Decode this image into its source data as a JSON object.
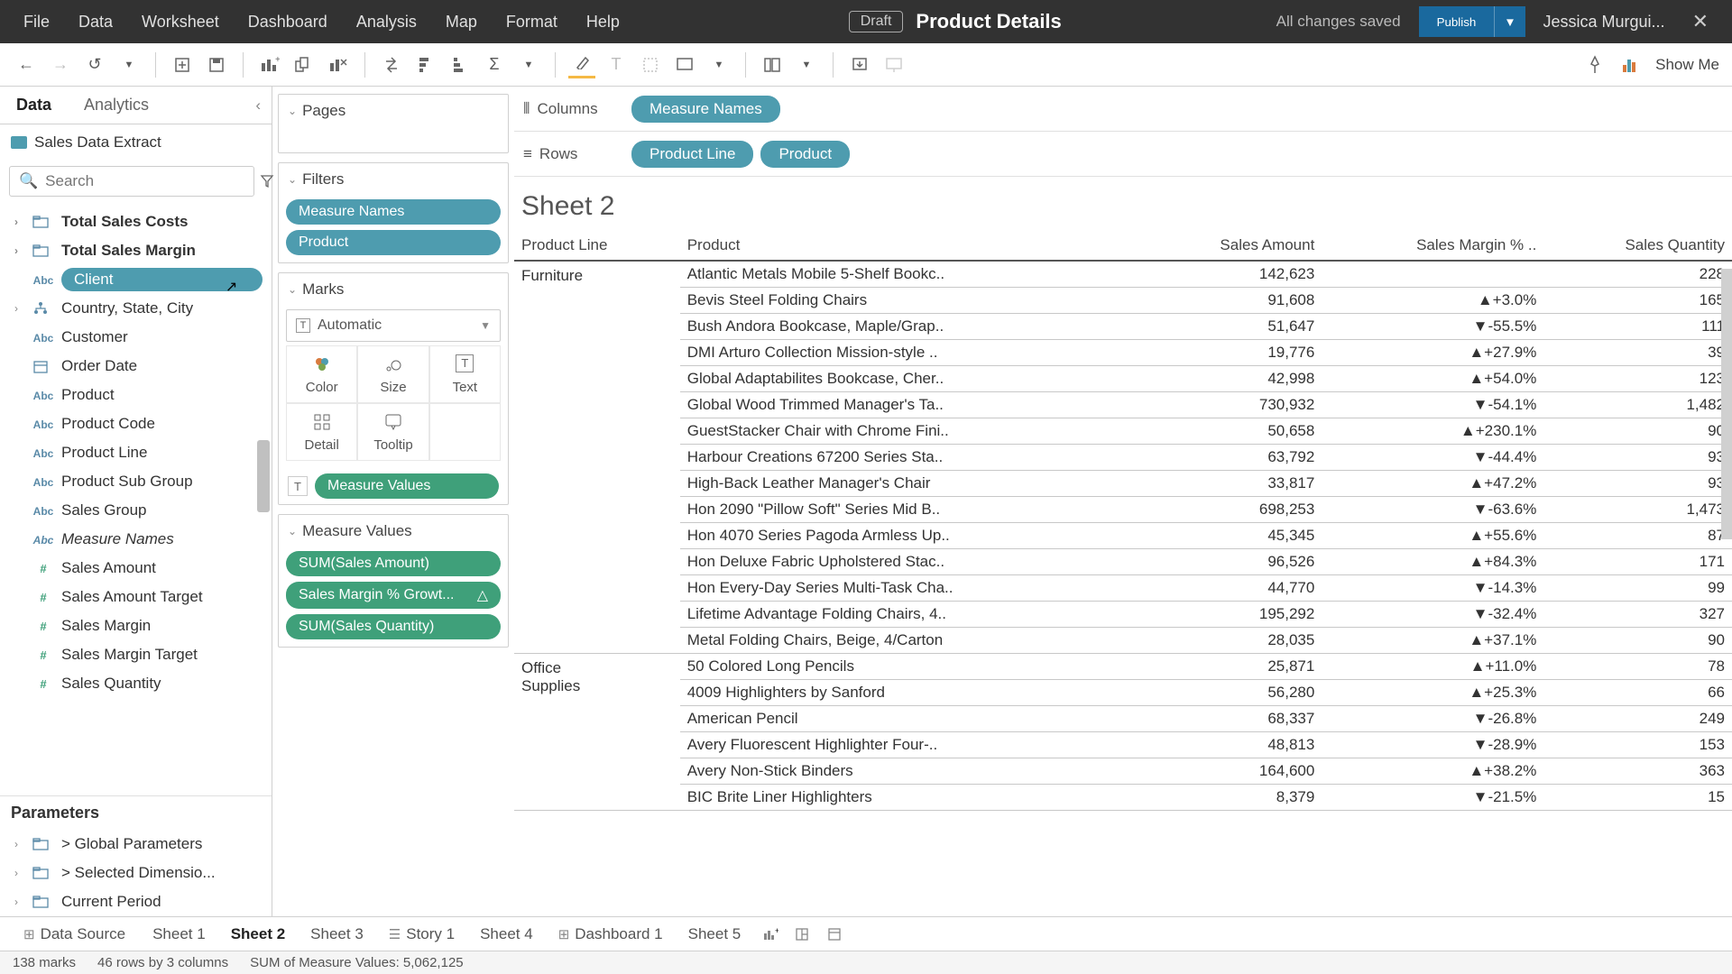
{
  "top": {
    "menus": [
      "File",
      "Data",
      "Worksheet",
      "Dashboard",
      "Analysis",
      "Map",
      "Format",
      "Help"
    ],
    "draft": "Draft",
    "title": "Product Details",
    "saved": "All changes saved",
    "publish": "Publish",
    "user": "Jessica Murgui..."
  },
  "sidebar": {
    "tabs": [
      "Data",
      "Analytics"
    ],
    "datasource": "Sales Data Extract",
    "search_placeholder": "Search",
    "fields": [
      {
        "exp": ">",
        "type": "folder",
        "label": "Total Sales Costs",
        "bold": true
      },
      {
        "exp": ">",
        "type": "folder",
        "label": "Total Sales Margin",
        "bold": true
      },
      {
        "exp": "",
        "type": "Abc",
        "label": "Client",
        "pill": true
      },
      {
        "exp": ">",
        "type": "hier",
        "label": "Country, State, City"
      },
      {
        "exp": "",
        "type": "Abc",
        "label": "Customer"
      },
      {
        "exp": "",
        "type": "date",
        "label": "Order Date"
      },
      {
        "exp": "",
        "type": "Abc",
        "label": "Product"
      },
      {
        "exp": "",
        "type": "Abc",
        "label": "Product Code"
      },
      {
        "exp": "",
        "type": "Abc",
        "label": "Product Line"
      },
      {
        "exp": "",
        "type": "Abc",
        "label": "Product Sub Group"
      },
      {
        "exp": "",
        "type": "Abc",
        "label": "Sales Group"
      },
      {
        "exp": "",
        "type": "Abc",
        "label": "Measure Names",
        "italic": true
      },
      {
        "exp": "",
        "type": "#",
        "label": "Sales Amount",
        "measure": true
      },
      {
        "exp": "",
        "type": "#",
        "label": "Sales Amount Target",
        "measure": true
      },
      {
        "exp": "",
        "type": "#",
        "label": "Sales Margin",
        "measure": true
      },
      {
        "exp": "",
        "type": "#",
        "label": "Sales Margin Target",
        "measure": true
      },
      {
        "exp": "",
        "type": "#",
        "label": "Sales Quantity",
        "measure": true,
        "cut": true
      }
    ],
    "params_header": "Parameters",
    "params": [
      {
        "exp": ">",
        "type": "folder",
        "label": "> Global Parameters"
      },
      {
        "exp": ">",
        "type": "folder",
        "label": "> Selected Dimensio..."
      },
      {
        "exp": ">",
        "type": "folder",
        "label": "Current Period"
      }
    ]
  },
  "cards": {
    "pages": "Pages",
    "filters": {
      "title": "Filters",
      "pills": [
        "Measure Names",
        "Product"
      ]
    },
    "marks": {
      "title": "Marks",
      "type": "Automatic",
      "cells": [
        "Color",
        "Size",
        "Text",
        "Detail",
        "Tooltip"
      ],
      "label_pill": "Measure Values"
    },
    "measure_values": {
      "title": "Measure Values",
      "pills": [
        "SUM(Sales Amount)",
        "Sales Margin % Growt...",
        "SUM(Sales Quantity)"
      ]
    }
  },
  "shelves": {
    "columns_label": "Columns",
    "columns": [
      "Measure Names"
    ],
    "rows_label": "Rows",
    "rows": [
      "Product Line",
      "Product"
    ]
  },
  "sheet": {
    "title": "Sheet 2",
    "columns": [
      "Product Line",
      "Product",
      "Sales Amount",
      "Sales Margin % ..",
      "Sales Quantity"
    ],
    "groups": [
      {
        "line": "Furniture",
        "rows": [
          [
            "Atlantic Metals Mobile 5-Shelf Bookc..",
            "142,623",
            "",
            "228"
          ],
          [
            "Bevis Steel Folding Chairs",
            "91,608",
            "▲+3.0%",
            "165"
          ],
          [
            "Bush Andora Bookcase, Maple/Grap..",
            "51,647",
            "▼-55.5%",
            "111"
          ],
          [
            "DMI Arturo Collection Mission-style ..",
            "19,776",
            "▲+27.9%",
            "39"
          ],
          [
            "Global Adaptabilites Bookcase, Cher..",
            "42,998",
            "▲+54.0%",
            "123"
          ],
          [
            "Global Wood Trimmed Manager's Ta..",
            "730,932",
            "▼-54.1%",
            "1,482"
          ],
          [
            "GuestStacker Chair with Chrome Fini..",
            "50,658",
            "▲+230.1%",
            "90"
          ],
          [
            "Harbour Creations 67200 Series Sta..",
            "63,792",
            "▼-44.4%",
            "93"
          ],
          [
            "High-Back Leather Manager's Chair",
            "33,817",
            "▲+47.2%",
            "93"
          ],
          [
            "Hon 2090 \"Pillow Soft\" Series Mid B..",
            "698,253",
            "▼-63.6%",
            "1,473"
          ],
          [
            "Hon 4070 Series Pagoda Armless Up..",
            "45,345",
            "▲+55.6%",
            "87"
          ],
          [
            "Hon Deluxe Fabric Upholstered Stac..",
            "96,526",
            "▲+84.3%",
            "171"
          ],
          [
            "Hon Every-Day Series Multi-Task Cha..",
            "44,770",
            "▼-14.3%",
            "99"
          ],
          [
            "Lifetime Advantage Folding Chairs, 4..",
            "195,292",
            "▼-32.4%",
            "327"
          ],
          [
            "Metal Folding Chairs, Beige, 4/Carton",
            "28,035",
            "▲+37.1%",
            "90"
          ]
        ]
      },
      {
        "line": "Office\nSupplies",
        "rows": [
          [
            "50 Colored Long Pencils",
            "25,871",
            "▲+11.0%",
            "78"
          ],
          [
            "4009 Highlighters by Sanford",
            "56,280",
            "▲+25.3%",
            "66"
          ],
          [
            "American Pencil",
            "68,337",
            "▼-26.8%",
            "249"
          ],
          [
            "Avery Fluorescent Highlighter Four-..",
            "48,813",
            "▼-28.9%",
            "153"
          ],
          [
            "Avery Non-Stick Binders",
            "164,600",
            "▲+38.2%",
            "363"
          ],
          [
            "BIC Brite Liner Highlighters",
            "8,379",
            "▼-21.5%",
            "15"
          ]
        ]
      }
    ]
  },
  "tabs": {
    "datasource": "Data Source",
    "sheets": [
      "Sheet 1",
      "Sheet 2",
      "Sheet 3",
      "Story 1",
      "Sheet 4",
      "Dashboard 1",
      "Sheet 5"
    ],
    "active": "Sheet 2"
  },
  "status": {
    "marks": "138 marks",
    "rows": "46 rows by 3 columns",
    "sum": "SUM of Measure Values: 5,062,125"
  },
  "colors": {
    "pill_blue": "#4e9caf",
    "pill_green": "#3fa07a",
    "topbar": "#323232",
    "publish": "#1a699e"
  }
}
